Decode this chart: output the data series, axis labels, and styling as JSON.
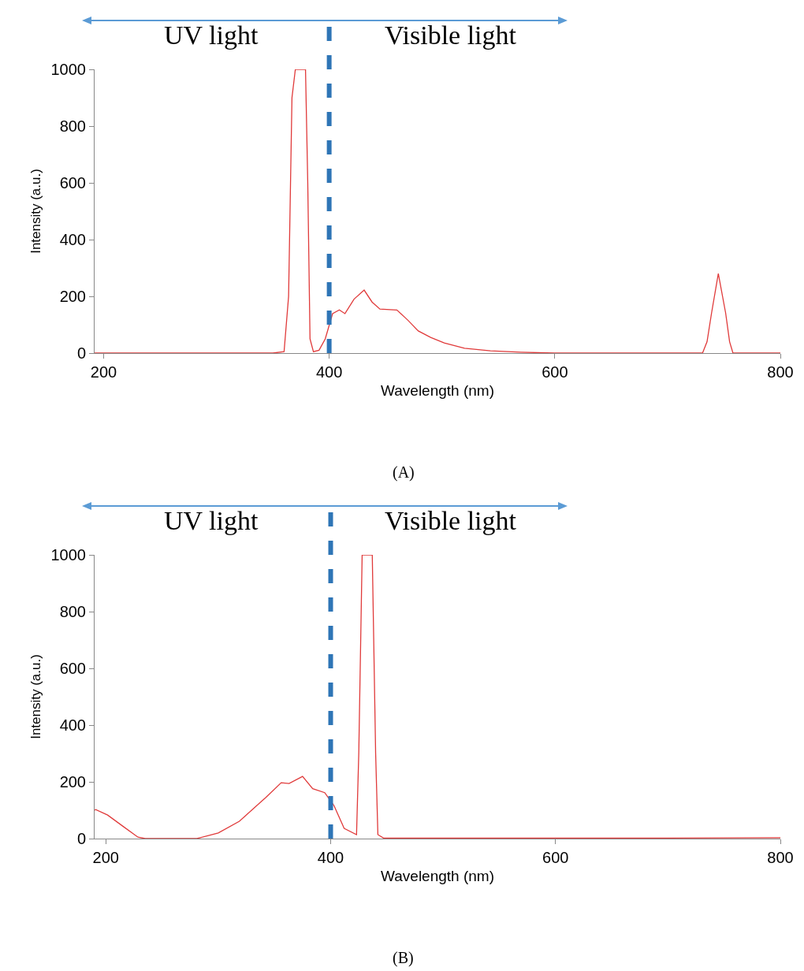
{
  "chart_data": [
    {
      "type": "line",
      "xlabel": "Wavelength (nm)",
      "ylabel": "Intensity (a.u.)",
      "x": [
        192,
        350,
        360,
        364,
        367,
        370,
        379,
        381,
        383,
        386,
        391,
        396.5,
        403,
        409,
        414,
        422,
        431,
        438,
        445,
        460,
        470,
        479,
        490,
        502,
        520,
        543,
        570,
        600,
        731,
        735,
        739,
        745,
        751.5,
        755,
        758,
        800
      ],
      "series": [
        {
          "color": "#e03a3a",
          "values": [
            0,
            0,
            5,
            200,
            900,
            1000,
            1000,
            600,
            50,
            5,
            10,
            50,
            139,
            152,
            139,
            190,
            222,
            180,
            155,
            152,
            115,
            78,
            55,
            36,
            17,
            8,
            3,
            0,
            0,
            40,
            141,
            280,
            141,
            40,
            0,
            0
          ]
        }
      ],
      "xlim": [
        192,
        800
      ],
      "ylim": [
        0,
        1000
      ],
      "xticks": [
        200,
        400,
        600,
        800
      ],
      "yticks": [
        0,
        200,
        400,
        600,
        800,
        1000
      ],
      "ref_lines": [
        {
          "axis": "x",
          "value": 400,
          "color": "#2e75b6",
          "line_style": "dashed"
        }
      ],
      "annotations": [
        "UV light",
        "Visible light",
        "(A)"
      ]
    },
    {
      "type": "line",
      "xlabel": "Wavelength (nm)",
      "ylabel": "Intensity (a.u.)",
      "x": [
        190,
        191,
        201.6,
        215.7,
        228.6,
        235,
        281,
        300,
        318.8,
        342,
        356,
        363,
        375,
        384,
        394.7,
        403,
        412,
        423,
        425,
        428,
        437,
        440,
        442,
        447,
        500,
        600,
        700,
        800
      ],
      "series": [
        {
          "color": "#e03a3a",
          "values": [
            100,
            102,
            83,
            42,
            5,
            0,
            0,
            20,
            61,
            144,
            197,
            194,
            219,
            176,
            162,
            116,
            36,
            14,
            300,
            1000,
            1000,
            300,
            14,
            2,
            2,
            2,
            2,
            3
          ]
        }
      ],
      "xlim": [
        190,
        800
      ],
      "ylim": [
        0,
        1000
      ],
      "xticks": [
        200,
        400,
        600,
        800
      ],
      "yticks": [
        0,
        200,
        400,
        600,
        800,
        1000
      ],
      "ref_lines": [
        {
          "axis": "x",
          "value": 400,
          "color": "#2e75b6",
          "line_style": "dashed"
        }
      ],
      "annotations": [
        "UV light",
        "Visible light",
        "(B)"
      ]
    }
  ]
}
